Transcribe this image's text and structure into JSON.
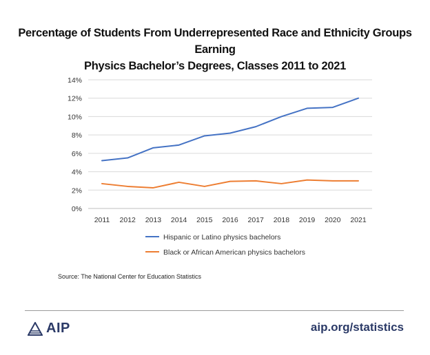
{
  "chart_data": {
    "type": "line",
    "title": "Percentage of Students From Underrepresented Race and Ethnicity Groups Earning Physics Bachelor’s Degrees, Classes 2011 to 2021",
    "title_line1": "Percentage of Students From Underrepresented Race and Ethnicity Groups Earning",
    "title_line2": "Physics Bachelor’s Degrees, Classes 2011 to 2021",
    "xlabel": "",
    "ylabel": "",
    "categories": [
      "2011",
      "2012",
      "2013",
      "2014",
      "2015",
      "2016",
      "2017",
      "2018",
      "2019",
      "2020",
      "2021"
    ],
    "y_ticks": [
      "0%",
      "2%",
      "4%",
      "6%",
      "8%",
      "10%",
      "12%",
      "14%"
    ],
    "ylim": [
      0,
      14
    ],
    "grid": true,
    "legend_position": "bottom",
    "series": [
      {
        "name": "Hispanic or Latino physics bachelors",
        "color": "#4472c4",
        "values": [
          5.2,
          5.5,
          6.6,
          6.9,
          7.9,
          8.2,
          8.9,
          10.0,
          10.9,
          11.0,
          12.0
        ]
      },
      {
        "name": "Black or African American physics bachelors",
        "color": "#ed7d31",
        "values": [
          2.7,
          2.4,
          2.25,
          2.85,
          2.4,
          2.95,
          3.0,
          2.7,
          3.1,
          3.0,
          3.0
        ]
      }
    ]
  },
  "source": "Source: The National Center for Education Statistics",
  "footer": {
    "logo_text": "AIP",
    "site": "aip.org/statistics",
    "brand_color": "#2b3a67"
  }
}
